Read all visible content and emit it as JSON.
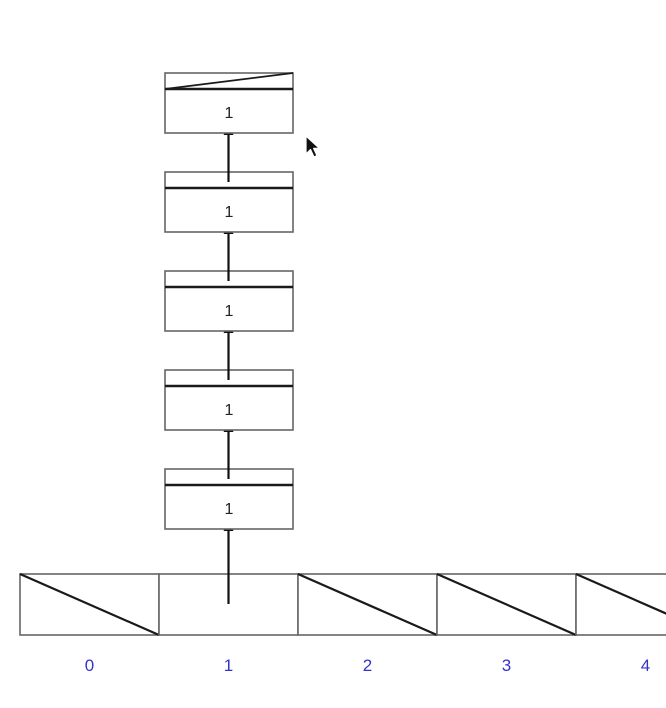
{
  "colors": {
    "stroke": "#666666",
    "stroke_dark": "#1a1a1a",
    "label": "#3333cc",
    "text": "#222222",
    "cursor_fill": "#111111",
    "cursor_outline": "#ffffff"
  },
  "array": {
    "slots": [
      {
        "label": "0",
        "empty": true
      },
      {
        "label": "1",
        "empty": false
      },
      {
        "label": "2",
        "empty": true
      },
      {
        "label": "3",
        "empty": true
      },
      {
        "label": "4",
        "empty": true
      }
    ]
  },
  "chain": {
    "slot_index": 1,
    "nodes": [
      {
        "value": "1",
        "next_null": false
      },
      {
        "value": "1",
        "next_null": false
      },
      {
        "value": "1",
        "next_null": false
      },
      {
        "value": "1",
        "next_null": false
      },
      {
        "value": "1",
        "next_null": true
      }
    ]
  },
  "cursor": {
    "icon": "mouse-pointer-icon"
  }
}
